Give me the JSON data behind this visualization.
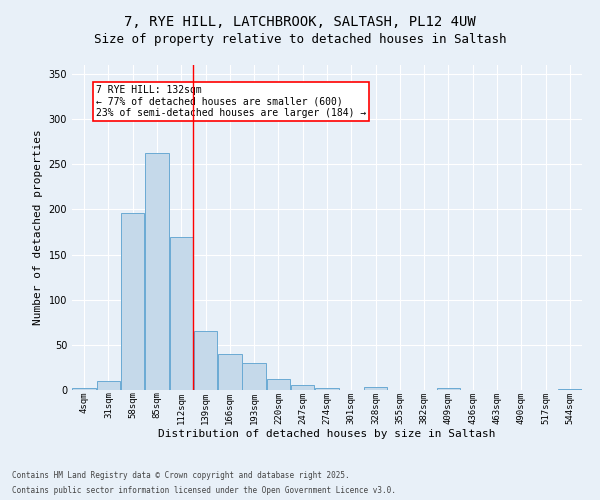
{
  "title1": "7, RYE HILL, LATCHBROOK, SALTASH, PL12 4UW",
  "title2": "Size of property relative to detached houses in Saltash",
  "xlabel": "Distribution of detached houses by size in Saltash",
  "ylabel": "Number of detached properties",
  "bins": [
    "4sqm",
    "31sqm",
    "58sqm",
    "85sqm",
    "112sqm",
    "139sqm",
    "166sqm",
    "193sqm",
    "220sqm",
    "247sqm",
    "274sqm",
    "301sqm",
    "328sqm",
    "355sqm",
    "382sqm",
    "409sqm",
    "436sqm",
    "463sqm",
    "490sqm",
    "517sqm",
    "544sqm"
  ],
  "values": [
    2,
    10,
    196,
    262,
    169,
    65,
    40,
    30,
    12,
    6,
    2,
    0,
    3,
    0,
    0,
    2,
    0,
    0,
    0,
    0,
    1
  ],
  "bar_color": "#c5d9ea",
  "bar_edge_color": "#6aaad4",
  "vline_x_between": 4.5,
  "annotation_text": "7 RYE HILL: 132sqm\n← 77% of detached houses are smaller (600)\n23% of semi-detached houses are larger (184) →",
  "annotation_box_color": "white",
  "annotation_box_edge": "red",
  "vline_color": "red",
  "ylim": [
    0,
    360
  ],
  "yticks": [
    0,
    50,
    100,
    150,
    200,
    250,
    300,
    350
  ],
  "bg_color": "#e8f0f8",
  "footer1": "Contains HM Land Registry data © Crown copyright and database right 2025.",
  "footer2": "Contains public sector information licensed under the Open Government Licence v3.0.",
  "title_fontsize": 10,
  "subtitle_fontsize": 9,
  "tick_fontsize": 6.5,
  "ylabel_fontsize": 8,
  "xlabel_fontsize": 8,
  "annotation_fontsize": 7,
  "footer_fontsize": 5.5
}
